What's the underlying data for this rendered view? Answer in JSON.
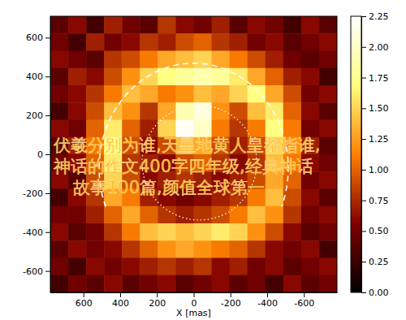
{
  "chart_data": {
    "type": "heatmap",
    "x_label": "X [mas]",
    "xlim": [
      780,
      -780
    ],
    "ylim": [
      -710,
      710
    ],
    "xticks": [
      600,
      400,
      200,
      0,
      -200,
      -400,
      -600
    ],
    "yticks": [
      -600,
      -400,
      -200,
      0,
      200,
      400,
      600
    ],
    "cells": [
      [
        0.4,
        0.6,
        0.3,
        0.7,
        0.5,
        0.4,
        0.8,
        0.6,
        0.5,
        0.7,
        0.4,
        0.6,
        0.5,
        0.3,
        0.6,
        0.4
      ],
      [
        0.5,
        0.3,
        0.7,
        0.5,
        0.6,
        0.8,
        0.7,
        0.9,
        1.0,
        0.8,
        0.7,
        0.5,
        0.6,
        0.4,
        0.5,
        0.6
      ],
      [
        0.6,
        0.5,
        0.4,
        0.8,
        0.9,
        1.1,
        1.3,
        1.4,
        1.5,
        1.3,
        1.1,
        0.9,
        0.7,
        0.5,
        0.4,
        0.5
      ],
      [
        0.4,
        0.7,
        0.6,
        0.9,
        1.2,
        1.5,
        1.7,
        1.8,
        1.9,
        1.8,
        1.6,
        1.3,
        1.0,
        0.7,
        0.6,
        0.3
      ],
      [
        0.5,
        0.6,
        0.8,
        1.1,
        1.4,
        1.3,
        1.1,
        1.2,
        1.4,
        1.3,
        1.5,
        1.7,
        1.3,
        0.9,
        0.5,
        0.6
      ],
      [
        0.3,
        0.6,
        0.9,
        1.4,
        1.2,
        0.8,
        1.3,
        1.9,
        2.1,
        1.2,
        0.9,
        1.4,
        1.6,
        1.0,
        0.6,
        0.4
      ],
      [
        0.6,
        0.5,
        1.0,
        1.6,
        1.0,
        0.7,
        1.5,
        2.2,
        2.0,
        1.1,
        0.8,
        1.1,
        1.7,
        1.1,
        0.5,
        0.6
      ],
      [
        0.4,
        0.7,
        1.1,
        1.7,
        0.9,
        0.6,
        0.9,
        1.4,
        1.3,
        0.9,
        0.7,
        0.9,
        1.5,
        1.2,
        0.7,
        0.4
      ],
      [
        0.5,
        0.6,
        1.0,
        1.6,
        0.8,
        0.7,
        0.6,
        0.9,
        1.0,
        0.8,
        0.6,
        0.8,
        1.4,
        1.1,
        0.6,
        0.5
      ],
      [
        0.6,
        0.4,
        0.9,
        1.5,
        0.9,
        0.6,
        0.7,
        0.8,
        0.7,
        0.6,
        0.7,
        0.9,
        1.3,
        1.0,
        0.5,
        0.6
      ],
      [
        0.3,
        0.6,
        0.8,
        1.3,
        1.1,
        0.7,
        0.6,
        0.5,
        0.6,
        0.7,
        0.8,
        1.1,
        1.4,
        0.9,
        0.6,
        0.4
      ],
      [
        0.5,
        0.5,
        0.7,
        1.0,
        1.3,
        1.0,
        0.8,
        0.7,
        0.8,
        0.9,
        1.1,
        1.4,
        1.2,
        0.8,
        0.5,
        0.6
      ],
      [
        0.6,
        0.4,
        0.5,
        0.8,
        1.1,
        1.4,
        1.5,
        1.4,
        1.5,
        1.6,
        1.5,
        1.2,
        0.9,
        0.6,
        0.4,
        0.5
      ],
      [
        0.4,
        0.6,
        0.5,
        0.6,
        0.8,
        1.0,
        1.2,
        1.3,
        1.2,
        1.1,
        1.0,
        0.8,
        0.6,
        0.5,
        0.6,
        0.3
      ],
      [
        0.5,
        0.3,
        0.6,
        0.5,
        0.6,
        0.7,
        0.8,
        0.7,
        0.8,
        0.6,
        0.7,
        0.5,
        0.6,
        0.4,
        0.5,
        0.6
      ],
      [
        0.3,
        0.5,
        0.4,
        0.6,
        0.4,
        0.5,
        0.6,
        0.4,
        0.5,
        0.6,
        0.4,
        0.5,
        0.3,
        0.6,
        0.4,
        0.5
      ]
    ],
    "colorbar_range": [
      0,
      2.25
    ],
    "colorbar_ticks": [
      {
        "value": 0,
        "label": "0.00"
      },
      {
        "value": 0.25,
        "label": "0.25"
      },
      {
        "value": 0.5,
        "label": "0.50"
      },
      {
        "value": 0.75,
        "label": "0.75"
      },
      {
        "value": 1,
        "label": "1.00"
      },
      {
        "value": 1.25,
        "label": "1.25"
      },
      {
        "value": 1.5,
        "label": "1.50"
      },
      {
        "value": 1.75,
        "label": "1.75"
      },
      {
        "value": 2,
        "label": "2.00"
      },
      {
        "value": 2.25,
        "label": "2.25"
      }
    ],
    "annotations": [
      "伏羲分别为谁,天皇地黄人皇都指谁,",
      "神话的作文400字四年级,经典神话",
      "故事100篇,颜值全球第一"
    ]
  }
}
